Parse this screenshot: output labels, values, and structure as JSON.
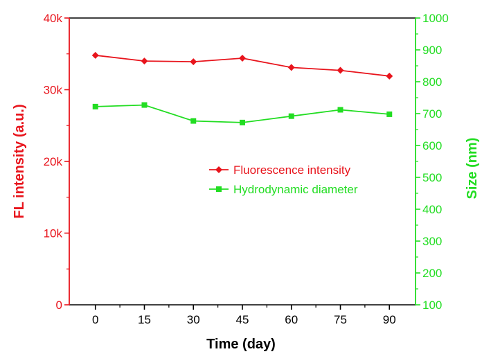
{
  "chart_data": {
    "type": "line",
    "x": [
      0,
      15,
      30,
      45,
      60,
      75,
      90
    ],
    "xlabel": "Time (day)",
    "xlim": [
      -8,
      98
    ],
    "x_ticks": [
      "0",
      "15",
      "30",
      "45",
      "60",
      "75",
      "90"
    ],
    "y_left": {
      "label": "FL intensity (a.u.)",
      "lim": [
        0,
        40000
      ],
      "ticks": [
        0,
        10000,
        20000,
        30000,
        40000
      ],
      "tick_labels": [
        "0",
        "10k",
        "20k",
        "30k",
        "40k"
      ],
      "color": "#e8141c"
    },
    "y_right": {
      "label": "Size (nm)",
      "lim": [
        100,
        1000
      ],
      "ticks": [
        100,
        200,
        300,
        400,
        500,
        600,
        700,
        800,
        900,
        1000
      ],
      "tick_labels": [
        "100",
        "200",
        "300",
        "400",
        "500",
        "600",
        "700",
        "800",
        "900",
        "1000"
      ],
      "color": "#22dd22"
    },
    "series": [
      {
        "name": "Fluorescence intensity",
        "axis": "left",
        "marker": "diamond",
        "color": "#e8141c",
        "values": [
          34800,
          34000,
          33900,
          34400,
          33100,
          32700,
          31900
        ]
      },
      {
        "name": "Hydrodynamic diameter",
        "axis": "right",
        "marker": "square",
        "color": "#22dd22",
        "values": [
          722,
          727,
          677,
          672,
          692,
          712,
          698
        ]
      }
    ],
    "legend": "center-right",
    "grid": false
  }
}
